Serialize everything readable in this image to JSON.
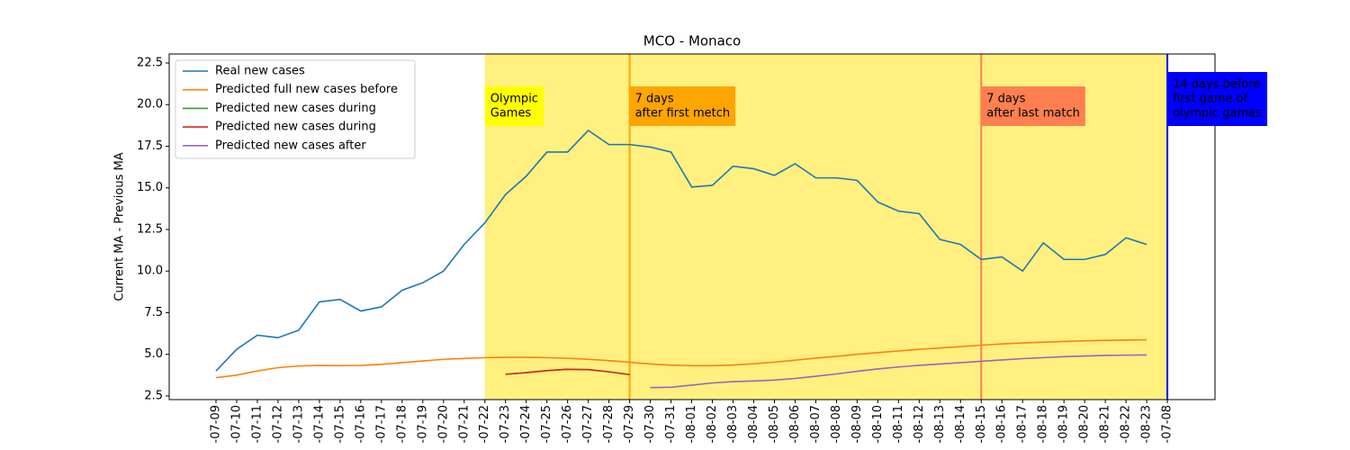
{
  "chart_data": {
    "type": "line",
    "title": "MCO - Monaco",
    "ylabel": "Current MA - Previous MA",
    "categories": [
      "-07-09",
      "-07-10",
      "-07-11",
      "-07-12",
      "-07-13",
      "-07-14",
      "-07-15",
      "-07-16",
      "-07-17",
      "-07-18",
      "-07-19",
      "-07-20",
      "-07-21",
      "-07-22",
      "-07-23",
      "-07-24",
      "-07-25",
      "-07-26",
      "-07-27",
      "-07-28",
      "-07-29",
      "-07-30",
      "-07-31",
      "-08-01",
      "-08-02",
      "-08-03",
      "-08-04",
      "-08-05",
      "-08-06",
      "-08-07",
      "-08-08",
      "-08-09",
      "-08-10",
      "-08-11",
      "-08-12",
      "-08-13",
      "-08-14",
      "-08-15",
      "-08-16",
      "-08-17",
      "-08-18",
      "-08-19",
      "-08-20",
      "-08-21",
      "-08-22",
      "-08-23",
      "-07-08"
    ],
    "series": [
      {
        "name": "Real new cases",
        "color": "#1f77b4",
        "values": [
          4.0,
          5.3,
          6.15,
          6.0,
          6.45,
          8.15,
          8.3,
          7.6,
          7.85,
          8.85,
          9.3,
          10.0,
          11.6,
          12.9,
          14.6,
          15.7,
          17.15,
          17.15,
          18.45,
          17.6,
          17.6,
          17.45,
          17.15,
          15.05,
          15.15,
          16.3,
          16.15,
          15.75,
          16.45,
          15.6,
          15.6,
          15.45,
          14.15,
          13.6,
          13.45,
          11.9,
          11.6,
          10.7,
          10.85,
          10.0,
          11.7,
          10.7,
          10.7,
          11.0,
          12.0,
          11.6,
          null
        ]
      },
      {
        "name": "Predicted full new cases before",
        "color": "#ff7f0e",
        "values": [
          3.6,
          3.75,
          4.0,
          4.2,
          4.3,
          4.33,
          4.32,
          4.33,
          4.4,
          4.5,
          4.6,
          4.7,
          4.75,
          4.8,
          4.82,
          4.82,
          4.8,
          4.76,
          4.7,
          4.62,
          4.52,
          4.42,
          4.35,
          4.32,
          4.32,
          4.36,
          4.43,
          4.53,
          4.65,
          4.77,
          4.88,
          5.0,
          5.1,
          5.2,
          5.3,
          5.38,
          5.46,
          5.55,
          5.62,
          5.68,
          5.73,
          5.77,
          5.81,
          5.84,
          5.86,
          5.87,
          null
        ]
      },
      {
        "name": "Predicted new cases during",
        "color": "#2ca02c",
        "values": [
          null,
          null,
          null,
          null,
          null,
          null,
          null,
          null,
          null,
          null,
          null,
          null,
          null,
          null,
          3.8,
          3.9,
          4.02,
          4.1,
          4.08,
          3.95,
          3.78,
          null,
          null,
          null,
          null,
          null,
          null,
          null,
          null,
          null,
          null,
          null,
          null,
          null,
          null,
          null,
          null,
          null,
          null,
          null,
          null,
          null,
          null,
          null,
          null,
          null,
          null
        ]
      },
      {
        "name": "Predicted new cases during",
        "color": "#d62728",
        "values": [
          null,
          null,
          null,
          null,
          null,
          null,
          null,
          null,
          null,
          null,
          null,
          null,
          null,
          null,
          3.8,
          3.9,
          4.02,
          4.1,
          4.08,
          3.95,
          3.78,
          null,
          null,
          null,
          null,
          null,
          null,
          null,
          null,
          null,
          null,
          null,
          null,
          null,
          null,
          null,
          null,
          null,
          null,
          null,
          null,
          null,
          null,
          null,
          null,
          null,
          null
        ]
      },
      {
        "name": "Predicted new cases after",
        "color": "#9467bd",
        "values": [
          null,
          null,
          null,
          null,
          null,
          null,
          null,
          null,
          null,
          null,
          null,
          null,
          null,
          null,
          null,
          null,
          null,
          null,
          null,
          null,
          null,
          3.0,
          3.02,
          3.15,
          3.28,
          3.36,
          3.4,
          3.45,
          3.55,
          3.68,
          3.82,
          3.98,
          4.12,
          4.24,
          4.34,
          4.42,
          4.5,
          4.58,
          4.66,
          4.74,
          4.8,
          4.86,
          4.9,
          4.93,
          4.95,
          4.96,
          null
        ]
      }
    ],
    "ylim": [
      2.28,
      23.04
    ],
    "yticks": [
      2.5,
      {
        "value": 5,
        "label": "5.0"
      },
      7.5,
      {
        "value": 10,
        "label": "10.0"
      },
      12.5,
      {
        "value": 15,
        "label": "15.0"
      },
      17.5,
      {
        "value": 20,
        "label": "20.0"
      },
      22.5
    ],
    "legend": "upper left",
    "span": {
      "from": "-07-22",
      "to": "-07-08",
      "color": "#fff080"
    },
    "vlines": [
      {
        "x": "-07-29",
        "color": "#ffa500"
      },
      {
        "x": "-08-15",
        "color": "#ff7f50"
      },
      {
        "x": "-07-08",
        "color": "#0000ff"
      }
    ],
    "annotations": [
      {
        "x": "-07-22",
        "lines": [
          "Olympic",
          "Games"
        ],
        "color": "#ffff00",
        "text_color": "#000000"
      },
      {
        "x": "-07-29",
        "lines": [
          "7 days",
          "after first metch"
        ],
        "color": "#ffa500",
        "text_color": "#000000"
      },
      {
        "x": "-08-15",
        "lines": [
          "7 days",
          "after last match"
        ],
        "color": "#ff7f50",
        "text_color": "#000000"
      },
      {
        "x": "-07-08",
        "lines": [
          "14 days before",
          "first game of",
          "olympic games"
        ],
        "color": "#0000ff",
        "text_color": "#ffffff"
      }
    ]
  }
}
